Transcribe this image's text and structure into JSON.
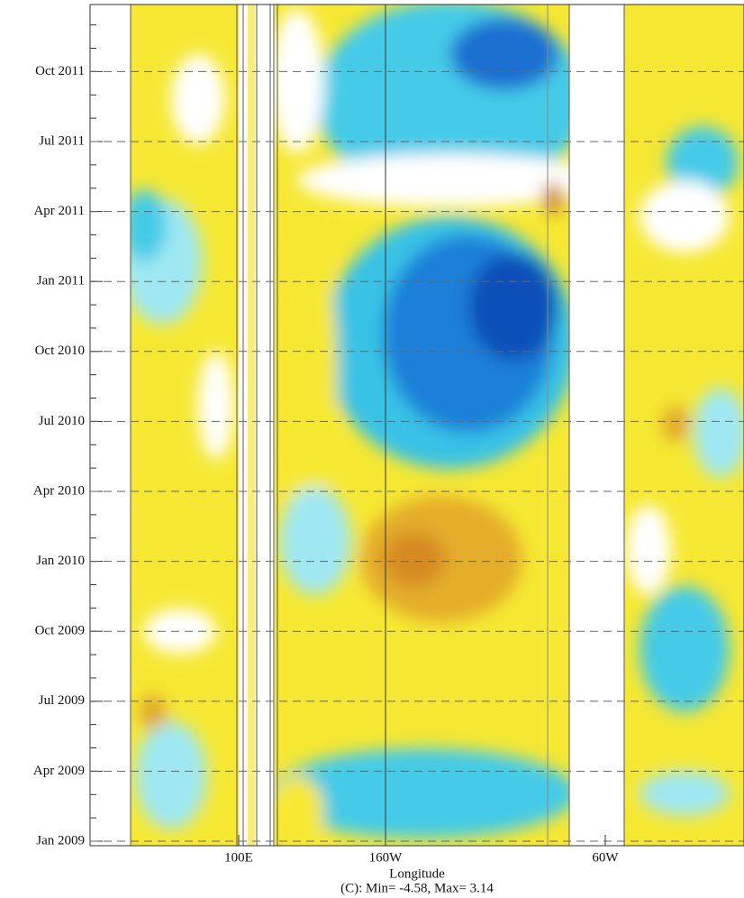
{
  "chart_data": {
    "type": "hovmoller",
    "yticks": [
      "Jan 2009",
      "Apr 2009",
      "Jul 2009",
      "Oct 2009",
      "Jan 2010",
      "Apr 2010",
      "Jul 2010",
      "Oct 2010",
      "Jan 2011",
      "Apr 2011",
      "Jul 2011",
      "Oct 2011"
    ],
    "xticks": [
      "100E",
      "160W",
      "60W"
    ],
    "xlabel": "Longitude",
    "caption": "(C): Min= -4.58, Max= 3.14",
    "grid": true
  }
}
